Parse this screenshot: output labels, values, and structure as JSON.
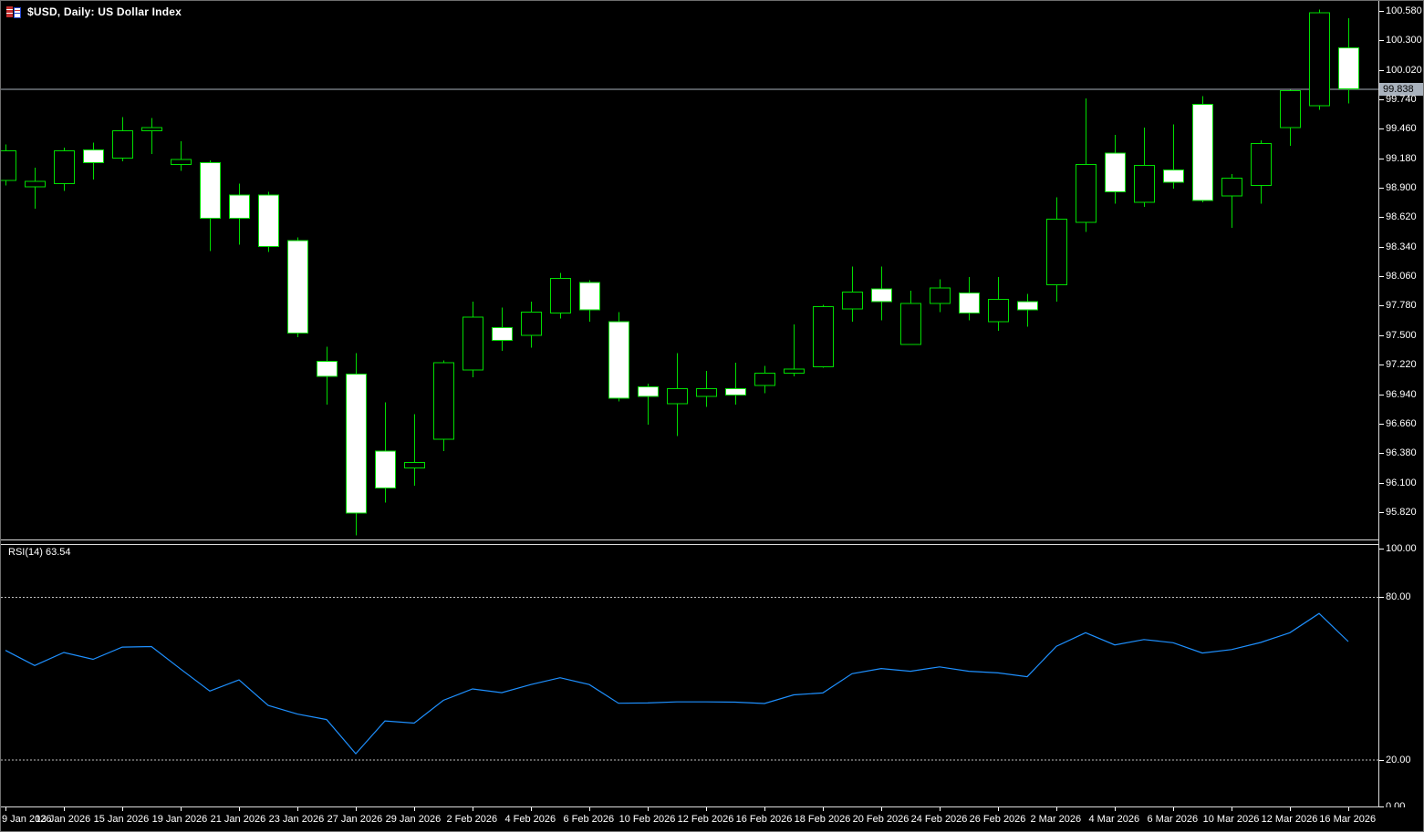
{
  "window": {
    "title": "$USD, Daily:  US Dollar Index"
  },
  "price_axis": {
    "ticks": [
      "100.580",
      "100.300",
      "100.020",
      "99.740",
      "99.460",
      "99.180",
      "98.900",
      "98.620",
      "98.340",
      "98.060",
      "97.780",
      "97.500",
      "97.220",
      "96.940",
      "96.660",
      "96.380",
      "96.100",
      "95.820"
    ],
    "current_price_label": "99.838"
  },
  "time_axis": {
    "labels": [
      "9 Jan 2026",
      "13 Jan 2026",
      "15 Jan 2026",
      "19 Jan 2026",
      "21 Jan 2026",
      "23 Jan 2026",
      "27 Jan 2026",
      "29 Jan 2026",
      "2 Feb 2026",
      "4 Feb 2026",
      "6 Feb 2026",
      "10 Feb 2026",
      "12 Feb 2026",
      "16 Feb 2026",
      "18 Feb 2026",
      "20 Feb 2026",
      "24 Feb 2026",
      "26 Feb 2026",
      "2 Mar 2026",
      "4 Mar 2026",
      "6 Mar 2026",
      "10 Mar 2026",
      "12 Mar 2026",
      "16 Mar 2026"
    ]
  },
  "rsi_panel": {
    "label": "RSI(14)",
    "value": "63.54",
    "axis_ticks": [
      "100.00",
      "80.00",
      "20.00",
      "0.00"
    ]
  },
  "chart_data": {
    "type": "candlestick",
    "symbol": "$USD",
    "timeframe": "Daily",
    "title": "US Dollar Index",
    "ylim": [
      95.57,
      100.67
    ],
    "grid": "off",
    "current_bid": 99.838,
    "candles": [
      {
        "d": "9 Jan 2026",
        "o": 98.97,
        "h": 99.31,
        "l": 98.92,
        "c": 99.25
      },
      {
        "d": "12 Jan 2026",
        "o": 98.91,
        "h": 99.09,
        "l": 98.7,
        "c": 98.96
      },
      {
        "d": "13 Jan 2026",
        "o": 98.94,
        "h": 99.28,
        "l": 98.87,
        "c": 99.25
      },
      {
        "d": "14 Jan 2026",
        "o": 99.26,
        "h": 99.33,
        "l": 98.98,
        "c": 99.14
      },
      {
        "d": "15 Jan 2026",
        "o": 99.18,
        "h": 99.57,
        "l": 99.15,
        "c": 99.44
      },
      {
        "d": "16 Jan 2026",
        "o": 99.44,
        "h": 99.56,
        "l": 99.22,
        "c": 99.47
      },
      {
        "d": "19 Jan 2026",
        "o": 99.12,
        "h": 99.34,
        "l": 99.06,
        "c": 99.17
      },
      {
        "d": "20 Jan 2026",
        "o": 99.14,
        "h": 99.16,
        "l": 98.3,
        "c": 98.61
      },
      {
        "d": "21 Jan 2026",
        "o": 98.83,
        "h": 98.94,
        "l": 98.36,
        "c": 98.61
      },
      {
        "d": "22 Jan 2026",
        "o": 98.83,
        "h": 98.86,
        "l": 98.29,
        "c": 98.34
      },
      {
        "d": "23 Jan 2026",
        "o": 98.4,
        "h": 98.43,
        "l": 97.48,
        "c": 97.52
      },
      {
        "d": "26 Jan 2026",
        "o": 97.25,
        "h": 97.39,
        "l": 96.84,
        "c": 97.11
      },
      {
        "d": "27 Jan 2026",
        "o": 97.13,
        "h": 97.33,
        "l": 95.6,
        "c": 95.81
      },
      {
        "d": "28 Jan 2026",
        "o": 96.4,
        "h": 96.86,
        "l": 95.91,
        "c": 96.05
      },
      {
        "d": "29 Jan 2026",
        "o": 96.24,
        "h": 96.75,
        "l": 96.07,
        "c": 96.29
      },
      {
        "d": "30 Jan 2026",
        "o": 96.51,
        "h": 97.26,
        "l": 96.4,
        "c": 97.24
      },
      {
        "d": "2 Feb 2026",
        "o": 97.17,
        "h": 97.82,
        "l": 97.1,
        "c": 97.67
      },
      {
        "d": "3 Feb 2026",
        "o": 97.57,
        "h": 97.76,
        "l": 97.35,
        "c": 97.45
      },
      {
        "d": "4 Feb 2026",
        "o": 97.5,
        "h": 97.82,
        "l": 97.38,
        "c": 97.72
      },
      {
        "d": "5 Feb 2026",
        "o": 97.71,
        "h": 98.09,
        "l": 97.66,
        "c": 98.04
      },
      {
        "d": "6 Feb 2026",
        "o": 98.0,
        "h": 98.02,
        "l": 97.63,
        "c": 97.74
      },
      {
        "d": "9 Feb 2026",
        "o": 97.63,
        "h": 97.72,
        "l": 96.87,
        "c": 96.9
      },
      {
        "d": "10 Feb 2026",
        "o": 97.01,
        "h": 97.04,
        "l": 96.65,
        "c": 96.92
      },
      {
        "d": "11 Feb 2026",
        "o": 96.85,
        "h": 97.33,
        "l": 96.54,
        "c": 96.99
      },
      {
        "d": "12 Feb 2026",
        "o": 96.92,
        "h": 97.16,
        "l": 96.82,
        "c": 96.99
      },
      {
        "d": "13 Feb 2026",
        "o": 96.99,
        "h": 97.24,
        "l": 96.84,
        "c": 96.93
      },
      {
        "d": "16 Feb 2026",
        "o": 97.02,
        "h": 97.21,
        "l": 96.95,
        "c": 97.14
      },
      {
        "d": "17 Feb 2026",
        "o": 97.14,
        "h": 97.6,
        "l": 97.11,
        "c": 97.18
      },
      {
        "d": "18 Feb 2026",
        "o": 97.2,
        "h": 97.79,
        "l": 97.19,
        "c": 97.77
      },
      {
        "d": "19 Feb 2026",
        "o": 97.75,
        "h": 98.15,
        "l": 97.63,
        "c": 97.91
      },
      {
        "d": "20 Feb 2026",
        "o": 97.94,
        "h": 98.15,
        "l": 97.64,
        "c": 97.82
      },
      {
        "d": "23 Feb 2026",
        "o": 97.41,
        "h": 97.92,
        "l": 97.41,
        "c": 97.8
      },
      {
        "d": "24 Feb 2026",
        "o": 97.8,
        "h": 98.03,
        "l": 97.72,
        "c": 97.95
      },
      {
        "d": "25 Feb 2026",
        "o": 97.9,
        "h": 98.05,
        "l": 97.64,
        "c": 97.71
      },
      {
        "d": "26 Feb 2026",
        "o": 97.63,
        "h": 98.05,
        "l": 97.54,
        "c": 97.84
      },
      {
        "d": "27 Feb 2026",
        "o": 97.82,
        "h": 97.89,
        "l": 97.58,
        "c": 97.74
      },
      {
        "d": "2 Mar 2026",
        "o": 97.98,
        "h": 98.81,
        "l": 97.82,
        "c": 98.6
      },
      {
        "d": "3 Mar 2026",
        "o": 98.57,
        "h": 99.75,
        "l": 98.48,
        "c": 99.12
      },
      {
        "d": "4 Mar 2026",
        "o": 99.23,
        "h": 99.4,
        "l": 98.75,
        "c": 98.86
      },
      {
        "d": "5 Mar 2026",
        "o": 98.76,
        "h": 99.47,
        "l": 98.72,
        "c": 99.11
      },
      {
        "d": "6 Mar 2026",
        "o": 99.07,
        "h": 99.5,
        "l": 98.89,
        "c": 98.95
      },
      {
        "d": "9 Mar 2026",
        "o": 99.69,
        "h": 99.77,
        "l": 98.76,
        "c": 98.78
      },
      {
        "d": "10 Mar 2026",
        "o": 98.82,
        "h": 99.03,
        "l": 98.52,
        "c": 98.99
      },
      {
        "d": "11 Mar 2026",
        "o": 98.92,
        "h": 99.35,
        "l": 98.75,
        "c": 99.32
      },
      {
        "d": "12 Mar 2026",
        "o": 99.47,
        "h": 99.83,
        "l": 99.3,
        "c": 99.82
      },
      {
        "d": "13 Mar 2026",
        "o": 99.68,
        "h": 100.59,
        "l": 99.64,
        "c": 100.56
      },
      {
        "d": "16 Mar 2026",
        "o": 100.23,
        "h": 100.51,
        "l": 99.7,
        "c": 99.838
      }
    ],
    "indicator": {
      "type": "line",
      "name": "RSI",
      "period": 14,
      "last_value": 63.54,
      "levels": [
        80,
        20
      ],
      "range": [
        0,
        100
      ],
      "values": [
        60.3,
        54.7,
        59.5,
        57.0,
        61.5,
        61.7,
        53.4,
        45.3,
        49.4,
        40.0,
        36.8,
        34.8,
        22.2,
        34.3,
        33.5,
        41.9,
        46.1,
        44.7,
        47.7,
        50.2,
        47.7,
        40.8,
        40.9,
        41.3,
        41.3,
        41.2,
        40.7,
        43.9,
        44.6,
        51.7,
        53.6,
        52.6,
        54.2,
        52.6,
        52.0,
        50.6,
        61.8,
        66.8,
        62.3,
        64.3,
        63.1,
        59.3,
        60.6,
        63.2,
        66.8,
        73.9,
        63.54
      ]
    }
  },
  "colors": {
    "background": "#000000",
    "candle_outline": "#00DE00",
    "bull_fill": "#000000",
    "bear_fill": "#FFFFFF",
    "rsi_line": "#1E90FF",
    "level_dashed": "#C0C0C0",
    "bid_line": "#A9B2BD",
    "axis_text": "#FFFFFF",
    "current_price_bg": "#A9B2BD",
    "current_price_text": "#000000",
    "panel_border": "#DCDCDC"
  }
}
